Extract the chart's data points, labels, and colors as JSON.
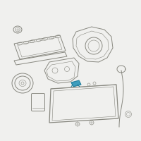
{
  "bg_color": "#f0f0ee",
  "line_color": "#888880",
  "highlight_color": "#3399bb",
  "lw": 0.7,
  "lw_thin": 0.4,
  "lw_thick": 0.9
}
